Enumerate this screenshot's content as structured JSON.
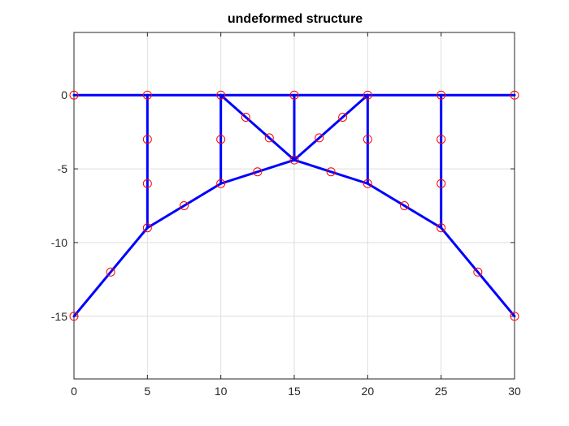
{
  "chart_data": {
    "type": "line",
    "title": "undeformed structure",
    "xlabel": "",
    "ylabel": "",
    "xlim": [
      0,
      30
    ],
    "ylim": [
      -19.25,
      4.25
    ],
    "xticks": [
      0,
      5,
      10,
      15,
      20,
      25,
      30
    ],
    "yticks": [
      0,
      -5,
      -10,
      -15
    ],
    "grid": true,
    "member_color": "#0000ff",
    "node_color": "#ff0000",
    "members": [
      [
        [
          0,
          0
        ],
        [
          30,
          0
        ]
      ],
      [
        [
          0,
          -15
        ],
        [
          5,
          -9
        ]
      ],
      [
        [
          5,
          -9
        ],
        [
          10,
          -6
        ]
      ],
      [
        [
          10,
          -6
        ],
        [
          15,
          -4.4
        ]
      ],
      [
        [
          15,
          -4.4
        ],
        [
          20,
          -6
        ]
      ],
      [
        [
          20,
          -6
        ],
        [
          25,
          -9
        ]
      ],
      [
        [
          25,
          -9
        ],
        [
          30,
          -15
        ]
      ],
      [
        [
          5,
          0
        ],
        [
          5,
          -9
        ]
      ],
      [
        [
          10,
          0
        ],
        [
          10,
          -6
        ]
      ],
      [
        [
          15,
          0
        ],
        [
          15,
          -4.4
        ]
      ],
      [
        [
          20,
          0
        ],
        [
          20,
          -6
        ]
      ],
      [
        [
          25,
          0
        ],
        [
          25,
          -9
        ]
      ],
      [
        [
          10,
          0
        ],
        [
          15,
          -4.4
        ]
      ],
      [
        [
          20,
          0
        ],
        [
          15,
          -4.4
        ]
      ]
    ],
    "nodes": [
      [
        0,
        0
      ],
      [
        5,
        0
      ],
      [
        10,
        0
      ],
      [
        15,
        0
      ],
      [
        20,
        0
      ],
      [
        25,
        0
      ],
      [
        30,
        0
      ],
      [
        5,
        -3
      ],
      [
        5,
        -6
      ],
      [
        5,
        -9
      ],
      [
        10,
        -3
      ],
      [
        10,
        -6
      ],
      [
        15,
        -4.4
      ],
      [
        20,
        -3
      ],
      [
        20,
        -6
      ],
      [
        25,
        -3
      ],
      [
        25,
        -6
      ],
      [
        25,
        -9
      ],
      [
        2.5,
        -12
      ],
      [
        0,
        -15
      ],
      [
        27.5,
        -12
      ],
      [
        30,
        -15
      ],
      [
        7.5,
        -7.5
      ],
      [
        12.5,
        -5.2
      ],
      [
        17.5,
        -5.2
      ],
      [
        22.5,
        -7.5
      ],
      [
        11.7,
        -1.5
      ],
      [
        13.3,
        -2.9
      ],
      [
        16.7,
        -2.9
      ],
      [
        18.3,
        -1.5
      ]
    ]
  }
}
